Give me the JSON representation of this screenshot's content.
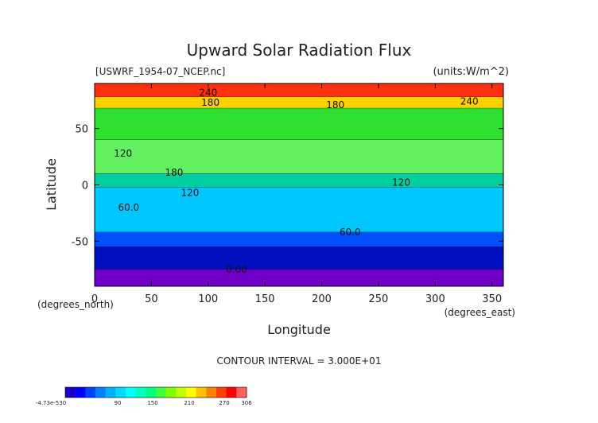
{
  "chart_data": {
    "type": "heatmap",
    "title": "Upward Solar Radiation Flux",
    "file_label": "[USWRF_1954-07_NCEP.nc]",
    "units_label": "(units:W/m^2)",
    "xlabel": "Longitude",
    "ylabel": "Latitude",
    "x_unit_label": "(degrees_east)",
    "y_unit_label": "(degrees_north)",
    "xlim": [
      0,
      360
    ],
    "ylim": [
      -90,
      90
    ],
    "x_ticks": [
      "0",
      "50",
      "100",
      "150",
      "200",
      "250",
      "300",
      "350"
    ],
    "y_ticks": [
      "50",
      "0",
      "-50"
    ],
    "contour_interval_text": "CONTOUR INTERVAL = 3.000E+01",
    "contour_labels": [
      {
        "text": "240",
        "lon": 100,
        "lat": 82
      },
      {
        "text": "180",
        "lon": 102,
        "lat": 73
      },
      {
        "text": "180",
        "lon": 212,
        "lat": 71
      },
      {
        "text": "240",
        "lon": 330,
        "lat": 74
      },
      {
        "text": "120",
        "lon": 25,
        "lat": 28
      },
      {
        "text": "180",
        "lon": 70,
        "lat": 11
      },
      {
        "text": "120",
        "lon": 84,
        "lat": -7
      },
      {
        "text": "120",
        "lon": 270,
        "lat": 2
      },
      {
        "text": "60.0",
        "lon": 30,
        "lat": -20
      },
      {
        "text": "60.0",
        "lon": 225,
        "lat": -42
      },
      {
        "text": "0.00",
        "lon": 125,
        "lat": -75
      }
    ],
    "colorbar": {
      "tick_labels": [
        "-4.73e-530",
        "90",
        "150",
        "210",
        "270",
        "306"
      ],
      "colors": [
        "#1a00c8",
        "#0000ff",
        "#0040ff",
        "#0080ff",
        "#00b0ff",
        "#00d8ff",
        "#00ffff",
        "#00ffc0",
        "#00ff80",
        "#40ff40",
        "#80ff00",
        "#c0ff00",
        "#ffff00",
        "#ffc000",
        "#ff8000",
        "#ff4000",
        "#ff0000",
        "#ff6060"
      ]
    },
    "zonal_bands": [
      {
        "lat_from": 90,
        "lat_to": 78,
        "value": 260,
        "color": "#ff3010"
      },
      {
        "lat_from": 78,
        "lat_to": 68,
        "value": 220,
        "color": "#ffd000"
      },
      {
        "lat_from": 68,
        "lat_to": 40,
        "value": 170,
        "color": "#30e030"
      },
      {
        "lat_from": 40,
        "lat_to": 10,
        "value": 150,
        "color": "#60f060"
      },
      {
        "lat_from": 10,
        "lat_to": -2,
        "value": 130,
        "color": "#00d0a0"
      },
      {
        "lat_from": -2,
        "lat_to": -42,
        "value": 90,
        "color": "#00c8ff"
      },
      {
        "lat_from": -42,
        "lat_to": -55,
        "value": 50,
        "color": "#0050ff"
      },
      {
        "lat_from": -55,
        "lat_to": -75,
        "value": 15,
        "color": "#0010c0"
      },
      {
        "lat_from": -75,
        "lat_to": -90,
        "value": 0,
        "color": "#7000c8"
      }
    ]
  }
}
